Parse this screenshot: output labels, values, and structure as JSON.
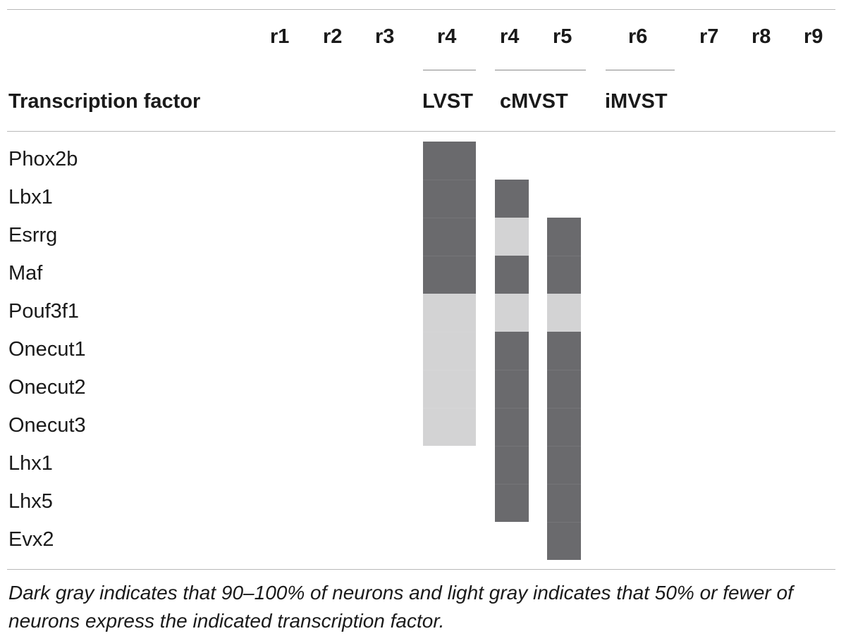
{
  "table": {
    "rhombomeres": [
      "r1",
      "r2",
      "r3",
      "r4",
      "r4",
      "r5",
      "r6",
      "r7",
      "r8",
      "r9"
    ],
    "column_header": "Transcription factor",
    "groups": [
      "LVST",
      "cMVST",
      "iMVST"
    ],
    "factors": [
      "Phox2b",
      "Lbx1",
      "Esrrg",
      "Maf",
      "Pouf3f1",
      "Onecut1",
      "Onecut2",
      "Onecut3",
      "Lhx1",
      "Lhx5",
      "Evx2"
    ],
    "expression_levels": {
      "dark": "90–100%",
      "light": "50% or fewer"
    },
    "expression_columns": [
      {
        "group": "LVST",
        "rhombomere": "r4",
        "levels": [
          "dark",
          "dark",
          "dark",
          "dark",
          "light",
          "light",
          "light",
          "light",
          null,
          null,
          null
        ]
      },
      {
        "group": "cMVST",
        "rhombomere": "r4",
        "levels": [
          null,
          "dark",
          "light",
          "dark",
          "light",
          "dark",
          "dark",
          "dark",
          "dark",
          "dark",
          null
        ]
      },
      {
        "group": "cMVST",
        "rhombomere": "r5",
        "levels": [
          null,
          null,
          "dark",
          "dark",
          "light",
          "dark",
          "dark",
          "dark",
          "dark",
          "dark",
          "dark"
        ]
      }
    ],
    "colors": {
      "dark": "#6a6a6d",
      "light": "#d3d3d4"
    }
  },
  "caption": "Dark gray indicates that 90–100% of neurons and light gray indicates that 50% or fewer of neurons express the indicated transcription factor."
}
